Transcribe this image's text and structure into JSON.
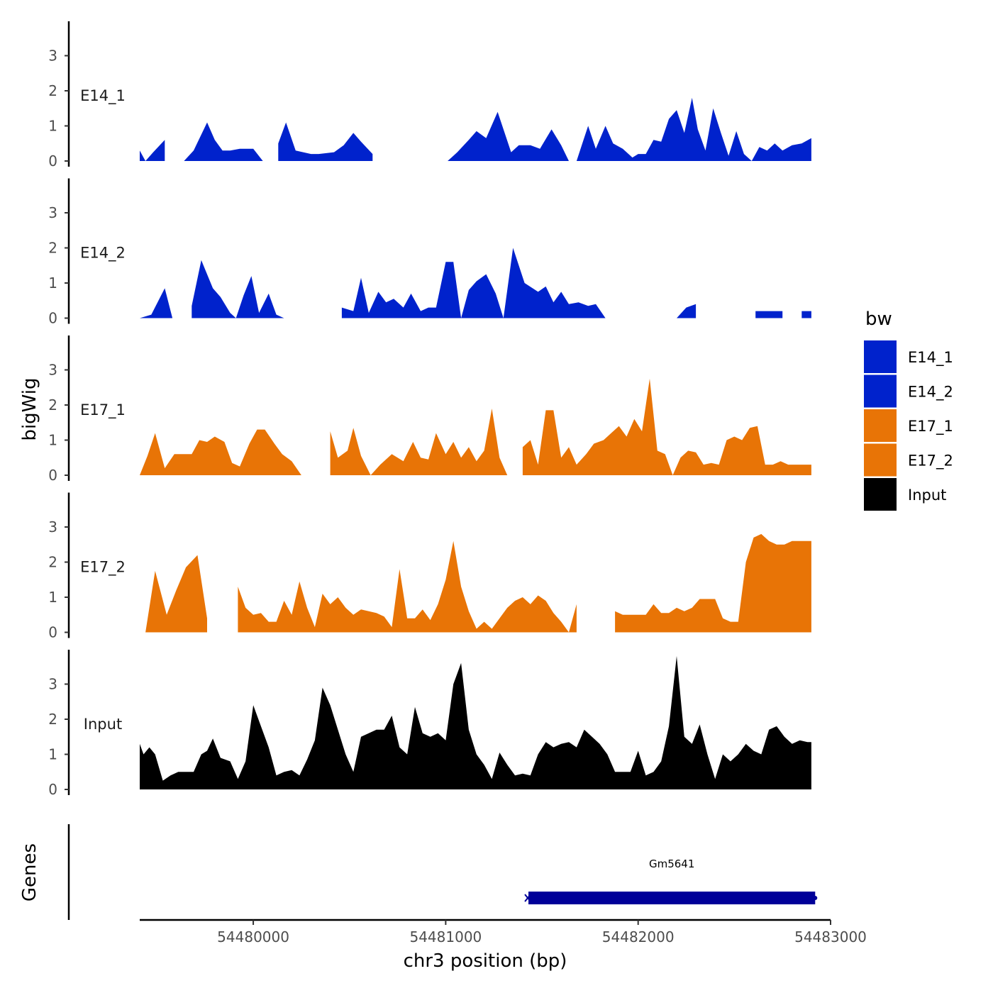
{
  "chart_data": {
    "type": "area",
    "title": "",
    "ylabel": "bigWig",
    "xlabel": "chr3 position (bp)",
    "xlim": [
      54479410,
      54483000
    ],
    "x_ticks": [
      {
        "value": 54480000,
        "label": "54480000"
      },
      {
        "value": 54481000,
        "label": "54481000"
      },
      {
        "value": 54482000,
        "label": "54482000"
      },
      {
        "value": 54483000,
        "label": "54483000"
      }
    ],
    "ylim": [
      0,
      3.9
    ],
    "y_ticks": [
      {
        "value": 0,
        "label": "0"
      },
      {
        "value": 1,
        "label": "1"
      },
      {
        "value": 2,
        "label": "2"
      },
      {
        "value": 3,
        "label": "3"
      }
    ],
    "legend": {
      "title": "bw",
      "position": "right",
      "entries": [
        {
          "label": "E14_1",
          "color": "#0022cc"
        },
        {
          "label": "E14_2",
          "color": "#0022cc"
        },
        {
          "label": "E17_1",
          "color": "#e87406"
        },
        {
          "label": "E17_2",
          "color": "#e87406"
        },
        {
          "label": "Input",
          "color": "#000000"
        }
      ]
    },
    "series": [
      {
        "name": "E14_1",
        "color": "#0022cc",
        "x": [
          54479410,
          54479440,
          54479480,
          54479540,
          54479600,
          54479640,
          54479690,
          54479760,
          54479800,
          54479840,
          54479880,
          54479930,
          54480000,
          54480050,
          54480090,
          54480130,
          54480170,
          54480220,
          54480300,
          54480340,
          54480420,
          54480470,
          54480520,
          54480560,
          54480620,
          54480660,
          54480720,
          54480790,
          54480830,
          54480870,
          54480940,
          54481010,
          54481060,
          54481120,
          54481160,
          54481210,
          54481270,
          54481340,
          54481380,
          54481440,
          54481490,
          54481550,
          54481600,
          54481640,
          54481680,
          54481710,
          54481740,
          54481780,
          54481830,
          54481870,
          54481920,
          54481970,
          54482000,
          54482040,
          54482080,
          54482120,
          54482160,
          54482200,
          54482240,
          54482280,
          54482310,
          54482350,
          54482390,
          54482430,
          54482470,
          54482510,
          54482550,
          54482590,
          54482630,
          54482670,
          54482710,
          54482750,
          54482800,
          54482850,
          54482900
        ],
        "y": [
          0.3,
          0.0,
          0.25,
          0.6,
          0.0,
          0.0,
          0.3,
          1.1,
          0.6,
          0.3,
          0.3,
          0.35,
          0.35,
          0.0,
          0.0,
          0.5,
          1.1,
          0.3,
          0.2,
          0.2,
          0.25,
          0.45,
          0.8,
          0.55,
          0.2,
          0.0,
          0.55,
          0.15,
          0.5,
          0.2,
          0.9,
          0.0,
          0.25,
          0.6,
          0.85,
          0.65,
          1.4,
          0.25,
          0.45,
          0.45,
          0.35,
          0.9,
          0.45,
          0.0,
          0.0,
          0.5,
          1.0,
          0.35,
          1.0,
          0.5,
          0.35,
          0.1,
          0.2,
          0.2,
          0.6,
          0.55,
          1.2,
          1.45,
          0.8,
          1.8,
          0.9,
          0.3,
          1.5,
          0.8,
          0.15,
          0.85,
          0.2,
          0.0,
          0.4,
          0.3,
          0.5,
          0.3,
          0.45,
          0.5,
          0.65
        ],
        "gaps": [
          [
            54479540,
            54479640
          ],
          [
            54480080,
            54480120
          ],
          [
            54480650,
            54481000
          ],
          [
            54481680,
            54481700
          ]
        ]
      },
      {
        "name": "E14_2",
        "color": "#0022cc",
        "x": [
          54479410,
          54479470,
          54479540,
          54479580,
          54479620,
          54479680,
          54479730,
          54479790,
          54479830,
          54479880,
          54479910,
          54479950,
          54479990,
          54480030,
          54480080,
          54480120,
          54480160,
          54480210,
          54480280,
          54480340,
          54480410,
          54480460,
          54480520,
          54480560,
          54480600,
          54480650,
          54480690,
          54480730,
          54480780,
          54480820,
          54480870,
          54480910,
          54480950,
          54481000,
          54481040,
          54481080,
          54481120,
          54481160,
          54481210,
          54481260,
          54481300,
          54481350,
          54481410,
          54481480,
          54481520,
          54481560,
          54481600,
          54481640,
          54481690,
          54481740,
          54481780,
          54481830,
          54481870,
          54481930,
          54481990,
          54482030,
          54482070,
          54482110,
          54482150,
          54482200,
          54482250,
          54482300,
          54482350,
          54482400,
          54482470,
          54482520,
          54482560,
          54482610,
          54482660,
          54482700,
          54482750,
          54482800,
          54482850,
          54482900
        ],
        "y": [
          0.0,
          0.1,
          0.85,
          0.0,
          0.0,
          0.35,
          1.65,
          0.85,
          0.6,
          0.15,
          0.0,
          0.65,
          1.2,
          0.15,
          0.7,
          0.1,
          0.0,
          0.35,
          0.0,
          0.0,
          0.0,
          0.3,
          0.2,
          1.15,
          0.15,
          0.75,
          0.45,
          0.55,
          0.3,
          0.7,
          0.2,
          0.3,
          0.3,
          1.6,
          1.6,
          0.0,
          0.8,
          1.05,
          1.25,
          0.7,
          0.0,
          2.0,
          1.0,
          0.75,
          0.9,
          0.45,
          0.75,
          0.4,
          0.45,
          0.35,
          0.4,
          0.0,
          0.0,
          0.0,
          0.4,
          0.0,
          0.0,
          0.8,
          0.0,
          0.0,
          0.3,
          0.4,
          0.4,
          0.4,
          0.15,
          0.0,
          0.2,
          0.2,
          0.2,
          0.2,
          0.2,
          0.2,
          0.2,
          0.2
        ],
        "gaps": [
          [
            54479600,
            54479640
          ],
          [
            54480160,
            54480420
          ],
          [
            54481280,
            54481300
          ],
          [
            54481880,
            54482180
          ],
          [
            54482320,
            54482570
          ],
          [
            54482770,
            54482820
          ]
        ]
      },
      {
        "name": "E17_1",
        "color": "#e87406",
        "x": [
          54479410,
          54479450,
          54479490,
          54479540,
          54479590,
          54479630,
          54479680,
          54479720,
          54479760,
          54479800,
          54479850,
          54479890,
          54479930,
          54479980,
          54480020,
          54480060,
          54480110,
          54480150,
          54480200,
          54480250,
          54480290,
          54480340,
          54480400,
          54480440,
          54480490,
          54480520,
          54480560,
          54480610,
          54480660,
          54480720,
          54480780,
          54480830,
          54480870,
          54480910,
          54480950,
          54481000,
          54481040,
          54481080,
          54481120,
          54481160,
          54481200,
          54481240,
          54481280,
          54481320,
          54481360,
          54481400,
          54481440,
          54481480,
          54481520,
          54481560,
          54481600,
          54481640,
          54481680,
          54481730,
          54481770,
          54481820,
          54481860,
          54481900,
          54481940,
          54481980,
          54482020,
          54482060,
          54482100,
          54482140,
          54482180,
          54482220,
          54482260,
          54482300,
          54482340,
          54482380,
          54482420,
          54482460,
          54482500,
          54482540,
          54482580,
          54482620,
          54482660,
          54482700,
          54482740,
          54482780,
          54482820,
          54482860,
          54482900
        ],
        "y": [
          0.0,
          0.55,
          1.2,
          0.2,
          0.6,
          0.6,
          0.6,
          1.0,
          0.95,
          1.1,
          0.95,
          0.35,
          0.25,
          0.9,
          1.3,
          1.3,
          0.9,
          0.6,
          0.4,
          0.0,
          0.0,
          0.0,
          1.25,
          0.5,
          0.7,
          1.35,
          0.55,
          0.0,
          0.3,
          0.6,
          0.4,
          0.95,
          0.5,
          0.45,
          1.2,
          0.6,
          0.95,
          0.5,
          0.8,
          0.4,
          0.7,
          1.9,
          0.5,
          0.0,
          0.0,
          0.8,
          1.0,
          0.3,
          1.85,
          1.85,
          0.5,
          0.8,
          0.3,
          0.6,
          0.9,
          1.0,
          1.2,
          1.4,
          1.1,
          1.6,
          1.25,
          2.75,
          0.7,
          0.6,
          0.0,
          0.5,
          0.7,
          0.65,
          0.3,
          0.35,
          0.3,
          1.0,
          1.1,
          1.0,
          1.35,
          1.4,
          0.3,
          0.3,
          0.4,
          0.3,
          0.3,
          0.3,
          0.3
        ],
        "gaps": [
          [
            54480250,
            54480350
          ],
          [
            54481320,
            54481370
          ]
        ]
      },
      {
        "name": "E17_2",
        "color": "#e87406",
        "x": [
          54479440,
          54479490,
          54479550,
          54479600,
          54479650,
          54479710,
          54479760,
          54479810,
          54479850,
          54479890,
          54479920,
          54479960,
          54480000,
          54480040,
          54480080,
          54480120,
          54480160,
          54480200,
          54480240,
          54480280,
          54480320,
          54480360,
          54480400,
          54480440,
          54480480,
          54480520,
          54480560,
          54480600,
          54480640,
          54480680,
          54480720,
          54480760,
          54480800,
          54480840,
          54480880,
          54480920,
          54480960,
          54481000,
          54481040,
          54481080,
          54481120,
          54481160,
          54481200,
          54481240,
          54481280,
          54481320,
          54481360,
          54481400,
          54481440,
          54481480,
          54481520,
          54481560,
          54481600,
          54481640,
          54481680,
          54481720,
          54481760,
          54481800,
          54481840,
          54481880,
          54481920,
          54481960,
          54482000,
          54482040,
          54482080,
          54482120,
          54482160,
          54482200,
          54482240,
          54482280,
          54482320,
          54482360,
          54482400,
          54482440,
          54482480,
          54482520,
          54482560,
          54482600,
          54482640,
          54482680,
          54482720,
          54482760,
          54482800,
          54482840,
          54482900
        ],
        "y": [
          0.0,
          1.75,
          0.5,
          1.2,
          1.85,
          2.2,
          0.4,
          0.0,
          0.0,
          0.6,
          1.3,
          0.7,
          0.5,
          0.55,
          0.3,
          0.3,
          0.9,
          0.5,
          1.45,
          0.7,
          0.15,
          1.1,
          0.8,
          1.0,
          0.7,
          0.5,
          0.65,
          0.6,
          0.55,
          0.45,
          0.15,
          1.8,
          0.4,
          0.4,
          0.65,
          0.35,
          0.8,
          1.5,
          2.6,
          1.3,
          0.6,
          0.1,
          0.3,
          0.1,
          0.4,
          0.7,
          0.9,
          1.0,
          0.8,
          1.05,
          0.9,
          0.55,
          0.3,
          0.0,
          0.8,
          0.55,
          0.0,
          0.0,
          0.4,
          0.6,
          0.5,
          0.5,
          0.5,
          0.5,
          0.8,
          0.55,
          0.55,
          0.7,
          0.6,
          0.7,
          0.95,
          0.95,
          0.95,
          0.4,
          0.3,
          0.3,
          2.0,
          2.7,
          2.8,
          2.6,
          2.5,
          2.5,
          2.6,
          2.6,
          2.6
        ],
        "gaps": [
          [
            54479790,
            54479900
          ],
          [
            54481680,
            54481730
          ],
          [
            54481820,
            54481880
          ]
        ]
      },
      {
        "name": "Input",
        "color": "#000000",
        "x": [
          54479410,
          54479430,
          54479460,
          54479490,
          54479530,
          54479570,
          54479610,
          54479650,
          54479690,
          54479730,
          54479760,
          54479790,
          54479830,
          54479880,
          54479920,
          54479960,
          54480000,
          54480040,
          54480080,
          54480120,
          54480160,
          54480200,
          54480240,
          54480280,
          54480320,
          54480360,
          54480400,
          54480440,
          54480480,
          54480520,
          54480560,
          54480600,
          54480640,
          54480680,
          54480720,
          54480760,
          54480800,
          54480840,
          54480880,
          54480920,
          54480960,
          54481000,
          54481040,
          54481080,
          54481120,
          54481160,
          54481200,
          54481240,
          54481280,
          54481320,
          54481360,
          54481400,
          54481440,
          54481480,
          54481520,
          54481560,
          54481600,
          54481640,
          54481680,
          54481720,
          54481760,
          54481800,
          54481840,
          54481880,
          54481920,
          54481960,
          54482000,
          54482040,
          54482080,
          54482120,
          54482160,
          54482200,
          54482240,
          54482280,
          54482320,
          54482360,
          54482400,
          54482440,
          54482480,
          54482520,
          54482560,
          54482600,
          54482640,
          54482680,
          54482720,
          54482760,
          54482800,
          54482840,
          54482880,
          54482900
        ],
        "y": [
          1.3,
          1.0,
          1.2,
          1.0,
          0.25,
          0.4,
          0.5,
          0.5,
          0.5,
          1.0,
          1.1,
          1.45,
          0.9,
          0.8,
          0.3,
          0.8,
          2.4,
          1.8,
          1.2,
          0.4,
          0.5,
          0.55,
          0.4,
          0.85,
          1.4,
          2.9,
          2.4,
          1.7,
          1.0,
          0.5,
          1.5,
          1.6,
          1.7,
          1.7,
          2.1,
          1.2,
          1.0,
          2.35,
          1.6,
          1.5,
          1.6,
          1.4,
          3.0,
          3.6,
          1.7,
          1.0,
          0.7,
          0.3,
          1.05,
          0.7,
          0.4,
          0.45,
          0.4,
          1.0,
          1.35,
          1.2,
          1.3,
          1.35,
          1.2,
          1.7,
          1.5,
          1.3,
          1.0,
          0.5,
          0.5,
          0.5,
          1.1,
          0.4,
          0.5,
          0.8,
          1.8,
          3.8,
          1.5,
          1.3,
          1.85,
          1.0,
          0.3,
          1.0,
          0.8,
          1.0,
          1.3,
          1.1,
          1.0,
          1.7,
          1.8,
          1.5,
          1.3,
          1.4,
          1.35,
          1.35
        ],
        "gaps": []
      }
    ],
    "genes": {
      "track_label": "Genes",
      "items": [
        {
          "name": "Gm5641",
          "start": 54481430,
          "end": 54482920,
          "color": "#000099"
        }
      ]
    }
  }
}
